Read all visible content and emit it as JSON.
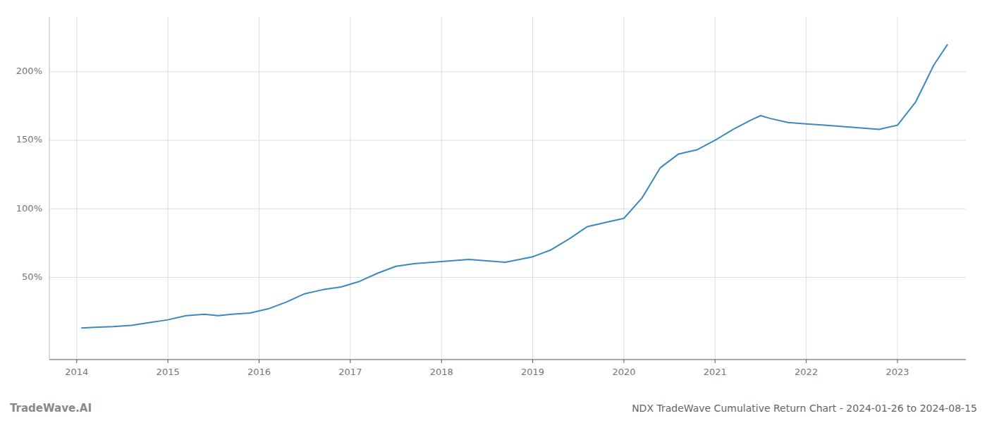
{
  "chart_data": {
    "type": "line",
    "title": "NDX TradeWave Cumulative Return Chart - 2024-01-26 to 2024-08-15",
    "annotations": [
      "TradeWave.AI"
    ],
    "color": "#3a8abf",
    "grid": true,
    "x": [
      2014.05,
      2014.2,
      2014.4,
      2014.6,
      2014.8,
      2015.0,
      2015.2,
      2015.4,
      2015.55,
      2015.7,
      2015.9,
      2016.1,
      2016.3,
      2016.5,
      2016.7,
      2016.9,
      2017.1,
      2017.3,
      2017.5,
      2017.7,
      2017.9,
      2018.1,
      2018.3,
      2018.5,
      2018.7,
      2019.0,
      2019.2,
      2019.4,
      2019.6,
      2019.8,
      2020.0,
      2020.2,
      2020.4,
      2020.6,
      2020.8,
      2021.0,
      2021.2,
      2021.4,
      2021.5,
      2021.6,
      2021.8,
      2022.0,
      2022.2,
      2022.4,
      2022.6,
      2022.8,
      2023.0,
      2023.2,
      2023.4,
      2023.55
    ],
    "values": [
      13,
      13.5,
      14,
      15,
      17,
      19,
      22,
      23,
      22,
      23,
      24,
      27,
      32,
      38,
      41,
      43,
      47,
      53,
      58,
      60,
      61,
      62,
      63,
      62,
      61,
      65,
      70,
      78,
      87,
      90,
      93,
      108,
      130,
      140,
      143,
      150,
      158,
      165,
      168,
      166,
      163,
      162,
      161,
      160,
      159,
      158,
      161,
      178,
      205,
      220
    ],
    "xlim": [
      2013.7,
      2023.75
    ],
    "xticks": [
      2014,
      2015,
      2016,
      2017,
      2018,
      2019,
      2020,
      2021,
      2022,
      2023
    ],
    "ylim": [
      -10,
      240
    ],
    "yticks": [
      {
        "value": 50,
        "label": "50%"
      },
      {
        "value": 100,
        "label": "100%"
      },
      {
        "value": 150,
        "label": "150%"
      },
      {
        "value": 200,
        "label": "200%"
      }
    ]
  }
}
